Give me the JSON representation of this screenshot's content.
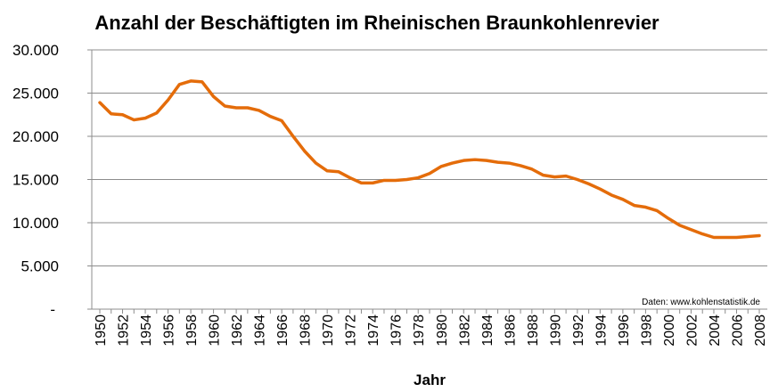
{
  "chart_data": {
    "type": "line",
    "title": "Anzahl der Beschäftigten im Rheinischen Braunkohlenrevier",
    "xlabel": "Jahr",
    "ylabel": "",
    "source_note": "Daten: www.kohlenstatistik.de",
    "ylim": [
      0,
      30000
    ],
    "y_ticks": [
      {
        "value": 0,
        "label": "-"
      },
      {
        "value": 5000,
        "label": "5.000"
      },
      {
        "value": 10000,
        "label": "10.000"
      },
      {
        "value": 15000,
        "label": "15.000"
      },
      {
        "value": 20000,
        "label": "20.000"
      },
      {
        "value": 25000,
        "label": "25.000"
      },
      {
        "value": 30000,
        "label": "30.000"
      }
    ],
    "x_tick_labels": [
      "1950",
      "1952",
      "1954",
      "1956",
      "1958",
      "1960",
      "1962",
      "1964",
      "1966",
      "1968",
      "1970",
      "1972",
      "1974",
      "1976",
      "1978",
      "1980",
      "1982",
      "1984",
      "1986",
      "1988",
      "1990",
      "1992",
      "1994",
      "1996",
      "1998",
      "2000",
      "2002",
      "2004",
      "2006",
      "2008"
    ],
    "grid": true,
    "legend": "none",
    "line_color": "#e46c0a",
    "series": [
      {
        "x": [
          1950,
          1951,
          1952,
          1953,
          1954,
          1955,
          1956,
          1957,
          1958,
          1959,
          1960,
          1961,
          1962,
          1963,
          1964,
          1965,
          1966,
          1967,
          1968,
          1969,
          1970,
          1971,
          1972,
          1973,
          1974,
          1975,
          1976,
          1977,
          1978,
          1979,
          1980,
          1981,
          1982,
          1983,
          1984,
          1985,
          1986,
          1987,
          1988,
          1989,
          1990,
          1991,
          1992,
          1993,
          1994,
          1995,
          1996,
          1997,
          1998,
          1999,
          2000,
          2001,
          2002,
          2003,
          2004,
          2005,
          2006,
          2007,
          2008
        ],
        "values": [
          23900,
          22600,
          22500,
          21900,
          22100,
          22700,
          24200,
          26000,
          26400,
          26300,
          24600,
          23500,
          23300,
          23300,
          23000,
          22300,
          21800,
          20000,
          18300,
          16900,
          16000,
          15900,
          15200,
          14600,
          14600,
          14900,
          14900,
          15000,
          15200,
          15700,
          16500,
          16900,
          17200,
          17300,
          17200,
          17000,
          16900,
          16600,
          16200,
          15500,
          15300,
          15400,
          15000,
          14500,
          13900,
          13200,
          12700,
          12000,
          11800,
          11400,
          10500,
          9700,
          9200,
          8700,
          8300,
          8300,
          8300,
          8400,
          8500
        ]
      }
    ]
  }
}
